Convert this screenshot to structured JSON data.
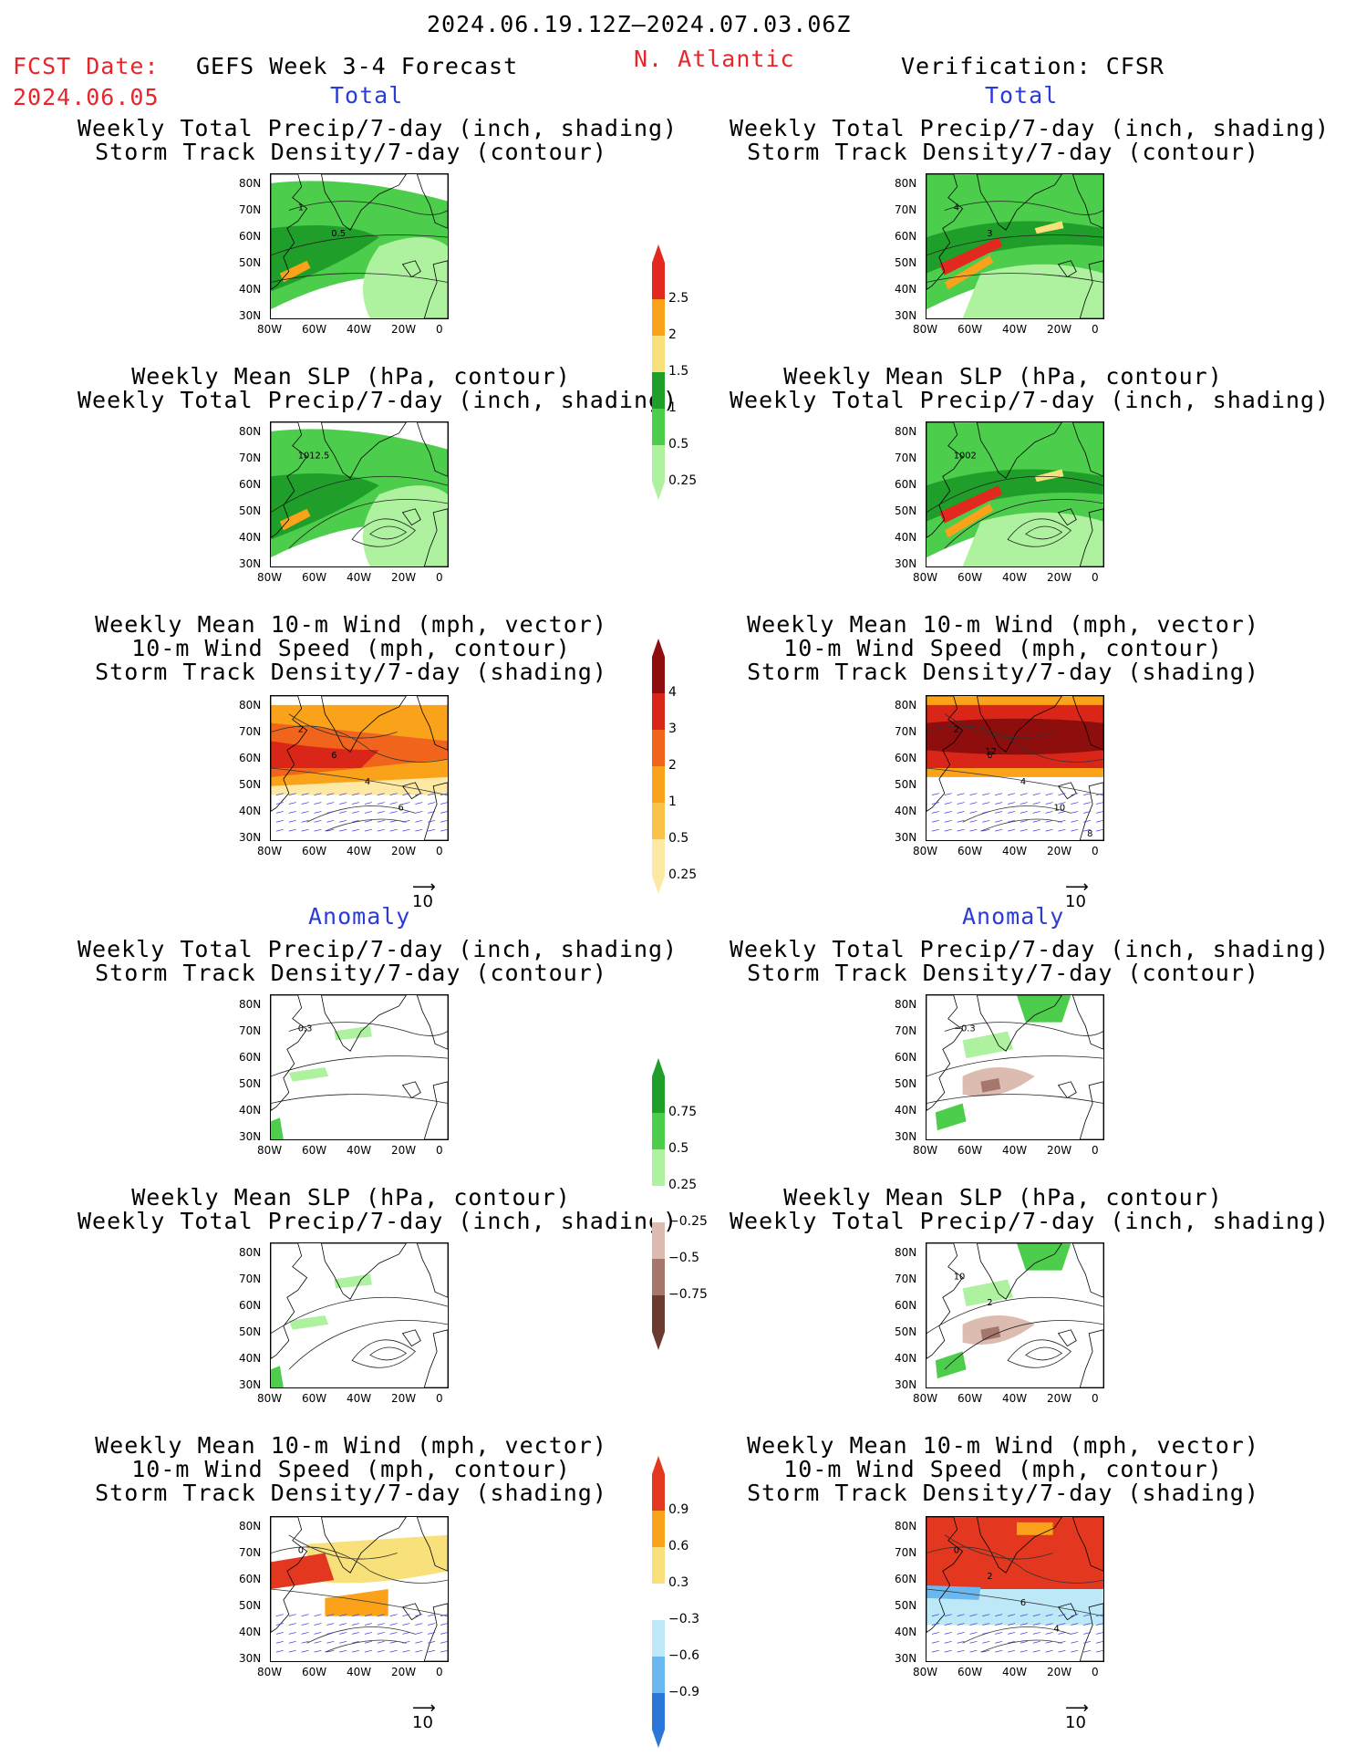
{
  "header": {
    "date_range": "2024.06.19.12Z–2024.07.03.06Z",
    "fcst_label": "FCST Date:",
    "fcst_date": "2024.06.05",
    "model": "GEFS Week 3-4 Forecast",
    "region": "N. Atlantic",
    "verification": "Verification: CFSR"
  },
  "sections": {
    "total": "Total",
    "anomaly": "Anomaly"
  },
  "titles": {
    "precip_track": [
      "Weekly Total Precip/7-day (inch, shading)",
      "Storm Track Density/7-day (contour)"
    ],
    "slp_precip": [
      "Weekly Mean SLP (hPa, contour)",
      "Weekly Total Precip/7-day (inch, shading)"
    ],
    "wind_track": [
      "Weekly Mean 10-m Wind (mph, vector)",
      "10-m Wind Speed (mph, contour)",
      "Storm Track Density/7-day (shading)"
    ]
  },
  "axes": {
    "lat": [
      "80N",
      "70N",
      "60N",
      "50N",
      "40N",
      "30N"
    ],
    "lon": [
      "80W",
      "60W",
      "40W",
      "20W",
      "0"
    ]
  },
  "vector_ref": "10",
  "colorbars": {
    "precip_total": {
      "labels": [
        "2.5",
        "2",
        "1.5",
        "1",
        "0.5",
        "0.25"
      ],
      "colors": [
        "#e3281f",
        "#f9a21a",
        "#f8e07a",
        "#1f9e2a",
        "#4ccd4c",
        "#aef2a0"
      ]
    },
    "track_total": {
      "labels": [
        "4",
        "3",
        "2",
        "1",
        "0.5",
        "0.25"
      ],
      "colors": [
        "#8e0d0d",
        "#d92618",
        "#f0651b",
        "#f9a21a",
        "#fbc24a",
        "#fde9a4"
      ]
    },
    "precip_anom": {
      "labels": [
        "0.75",
        "0.5",
        "0.25",
        "−0.25",
        "−0.5",
        "−0.75"
      ],
      "colors": [
        "#1f9e2a",
        "#4ccd4c",
        "#aef2a0",
        "#ffffff",
        "#dcbcb0",
        "#a5766b",
        "#6b3b30"
      ]
    },
    "track_anom": {
      "labels": [
        "0.9",
        "0.6",
        "0.3",
        "−0.3",
        "−0.6",
        "−0.9"
      ],
      "colors": [
        "#e3381f",
        "#f9a21a",
        "#f8e07a",
        "#ffffff",
        "#bde8f7",
        "#6ab8ef",
        "#2b76d9"
      ]
    }
  },
  "contour_labels": {
    "fc_total_precip": [
      "1",
      "0.5"
    ],
    "fc_total_slp": [
      "1012.5"
    ],
    "fc_total_wind": [
      "2",
      "6",
      "4",
      "6"
    ],
    "ob_total_precip": [
      "4",
      "3"
    ],
    "ob_total_slp": [
      "1002"
    ],
    "ob_total_wind": [
      "2",
      "6",
      "4",
      "10",
      "8",
      "12"
    ],
    "fc_anom_precip": [
      "0.3"
    ],
    "ob_anom_precip": [
      "−0.3"
    ],
    "ob_anom_slp": [
      "10",
      "2"
    ],
    "fc_anom_wind": [
      "0"
    ],
    "ob_anom_wind": [
      "0",
      "2",
      "6",
      "4"
    ]
  }
}
